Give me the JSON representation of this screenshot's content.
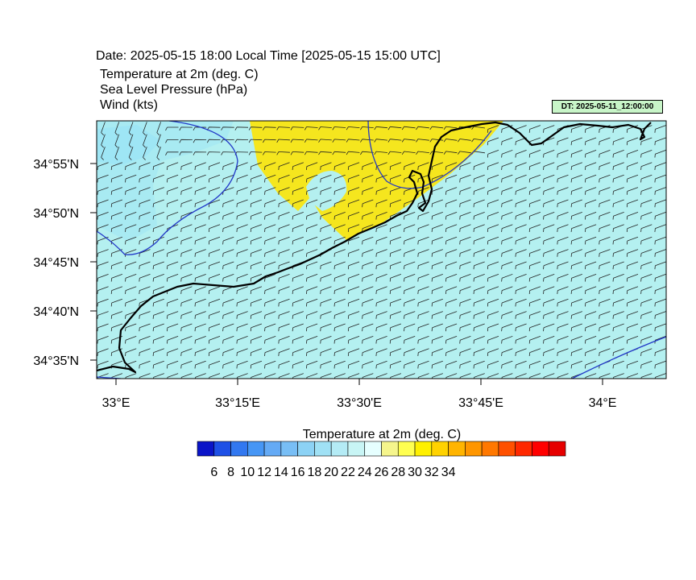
{
  "header": {
    "date_line": "Date: 2025-05-15  18:00 Local Time [2025-05-15  15:00 UTC]",
    "labels": [
      "Temperature at 2m   (deg. C)",
      "Sea Level Pressure   (hPa)",
      "Wind   (kts)"
    ],
    "dt_badge": "DT: 2025-05-11_12:00:00"
  },
  "map": {
    "lat_labels": [
      "34°55'N",
      "34°50'N",
      "34°45'N",
      "34°40'N",
      "34°35'N"
    ],
    "lon_labels": [
      "33°E",
      "33°15'E",
      "33°30'E",
      "33°45'E",
      "34°E"
    ],
    "colors": {
      "sea_fill": "#b4f0f0",
      "cool_fill": "#9ee6f5",
      "warm_fill": "#f5e61e",
      "isobar": "#2238c8",
      "coast": "#000000"
    }
  },
  "colorbar": {
    "title": "Temperature at 2m  (deg. C)",
    "colors": [
      "#0a14c8",
      "#1e50e6",
      "#3278f0",
      "#4696f5",
      "#64aaf5",
      "#78bef5",
      "#8cd2f5",
      "#a0e1f5",
      "#b4ebf5",
      "#c8f5f5",
      "#e6ffff",
      "#f5f58c",
      "#ffff50",
      "#fff000",
      "#ffd200",
      "#ffb400",
      "#ff9600",
      "#ff7800",
      "#ff5000",
      "#ff2800",
      "#ff0000",
      "#e60000"
    ],
    "tick_labels": [
      "6",
      "8",
      "10",
      "12",
      "14",
      "16",
      "18",
      "20",
      "22",
      "24",
      "26",
      "28",
      "30",
      "32",
      "34"
    ]
  }
}
